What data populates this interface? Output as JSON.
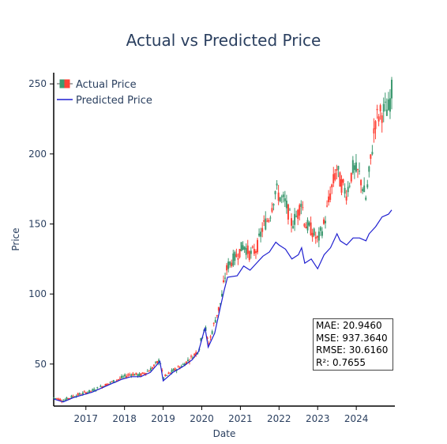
{
  "chart_data": {
    "type": "line",
    "title": "Actual vs Predicted Price",
    "xlabel": "Date",
    "ylabel": "Price",
    "x_ticks": [
      "2017",
      "2018",
      "2019",
      "2020",
      "2021",
      "2022",
      "2023",
      "2024"
    ],
    "y_ticks": [
      50,
      100,
      150,
      200,
      250
    ],
    "xlim": [
      "2016-03-01",
      "2024-12-31"
    ],
    "ylim": [
      20,
      258
    ],
    "legend_position": "top-left",
    "series": [
      {
        "name": "Actual Price",
        "style": "candlestick",
        "increasing_color": "#3d9970",
        "decreasing_color": "#ff4136",
        "x": [
          "2016-03",
          "2016-06",
          "2016-09",
          "2016-12",
          "2017-03",
          "2017-06",
          "2017-09",
          "2017-12",
          "2018-03",
          "2018-06",
          "2018-09",
          "2018-12",
          "2019-01",
          "2019-04",
          "2019-07",
          "2019-10",
          "2019-12",
          "2020-02",
          "2020-03",
          "2020-05",
          "2020-07",
          "2020-08",
          "2020-09",
          "2020-12",
          "2021-02",
          "2021-04",
          "2021-06",
          "2021-08",
          "2021-10",
          "2021-12",
          "2022-01",
          "2022-03",
          "2022-05",
          "2022-07",
          "2022-08",
          "2022-09",
          "2022-11",
          "2023-01",
          "2023-03",
          "2023-05",
          "2023-07",
          "2023-08",
          "2023-10",
          "2023-12",
          "2024-02",
          "2024-04",
          "2024-05",
          "2024-07",
          "2024-09",
          "2024-11",
          "2024-12"
        ],
        "values": [
          26,
          24,
          27,
          29,
          31,
          34,
          37,
          40,
          43,
          42,
          46,
          53,
          40,
          45,
          49,
          55,
          60,
          78,
          63,
          80,
          95,
          110,
          120,
          128,
          135,
          128,
          132,
          148,
          155,
          175,
          170,
          165,
          150,
          158,
          168,
          150,
          146,
          138,
          150,
          172,
          190,
          180,
          172,
          190,
          185,
          168,
          186,
          225,
          230,
          232,
          245
        ]
      },
      {
        "name": "Predicted Price",
        "color": "#1f1fd0",
        "x": [
          "2016-03",
          "2016-06",
          "2016-09",
          "2016-12",
          "2017-03",
          "2017-06",
          "2017-09",
          "2017-12",
          "2018-03",
          "2018-06",
          "2018-09",
          "2018-12",
          "2019-01",
          "2019-04",
          "2019-07",
          "2019-10",
          "2019-12",
          "2020-02",
          "2020-03",
          "2020-05",
          "2020-07",
          "2020-08",
          "2020-09",
          "2020-12",
          "2021-02",
          "2021-04",
          "2021-06",
          "2021-08",
          "2021-10",
          "2021-12",
          "2022-01",
          "2022-03",
          "2022-05",
          "2022-07",
          "2022-08",
          "2022-09",
          "2022-11",
          "2023-01",
          "2023-03",
          "2023-05",
          "2023-07",
          "2023-08",
          "2023-10",
          "2023-12",
          "2024-02",
          "2024-04",
          "2024-05",
          "2024-07",
          "2024-09",
          "2024-11",
          "2024-12"
        ],
        "values": [
          25,
          23,
          26,
          28,
          30,
          33,
          36,
          39,
          41,
          41,
          44,
          52,
          38,
          44,
          48,
          53,
          59,
          76,
          62,
          72,
          93,
          103,
          112,
          113,
          120,
          117,
          122,
          127,
          130,
          137,
          135,
          132,
          125,
          128,
          133,
          122,
          125,
          118,
          128,
          133,
          143,
          138,
          135,
          140,
          140,
          138,
          143,
          148,
          155,
          157,
          160
        ]
      }
    ]
  },
  "metrics": {
    "mae": "MAE: 20.9460",
    "mse": "MSE: 937.3640",
    "rmse": "RMSE: 30.6160",
    "r2": "R²: 0.7655"
  }
}
